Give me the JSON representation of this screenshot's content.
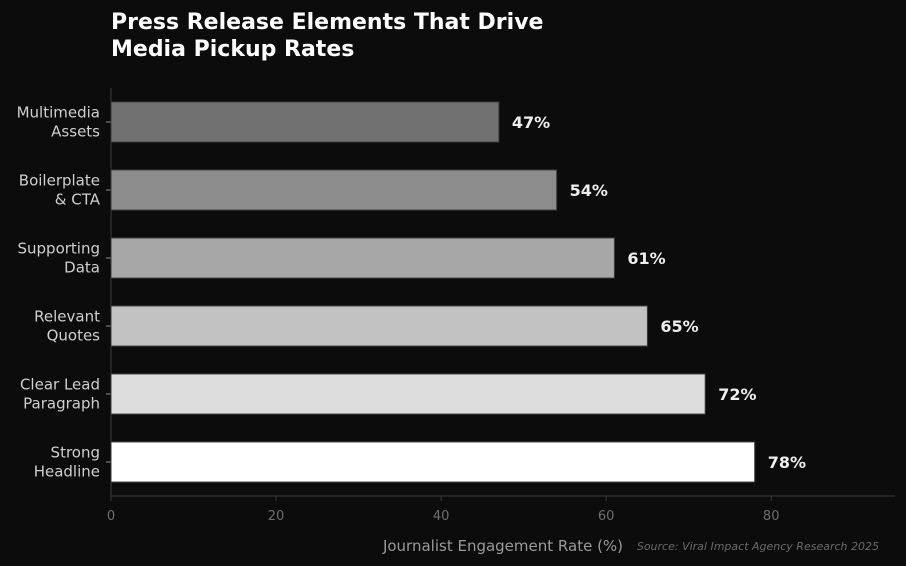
{
  "chart_data": {
    "type": "bar",
    "orientation": "horizontal",
    "title_lines": [
      "Press Release Elements That Drive",
      "Media Pickup Rates"
    ],
    "categories": [
      [
        "Multimedia",
        "Assets"
      ],
      [
        "Boilerplate",
        "& CTA"
      ],
      [
        "Supporting",
        "Data"
      ],
      [
        "Relevant",
        "Quotes"
      ],
      [
        "Clear Lead",
        "Paragraph"
      ],
      [
        "Strong",
        "Headline"
      ]
    ],
    "values": [
      47,
      54,
      61,
      65,
      72,
      78
    ],
    "value_labels": [
      "47%",
      "54%",
      "61%",
      "65%",
      "72%",
      "78%"
    ],
    "bar_colors": [
      "#717171",
      "#8c8c8c",
      "#a7a7a7",
      "#c2c2c2",
      "#dddddd",
      "#ffffff"
    ],
    "xlabel": "Journalist Engagement Rate (%)",
    "xticks": [
      0,
      20,
      40,
      60,
      80
    ],
    "xlim": [
      0,
      95
    ],
    "grid": false,
    "source": "Source: Viral Impact Agency Research 2025",
    "colors": {
      "background": "#0c0c0c",
      "title": "#ffffff",
      "category_label": "#cfcfcf",
      "value_label": "#eeeeee",
      "axis": "#3a3a3a",
      "tick_label": "#6e6e6e",
      "xlabel": "#9a9a9a",
      "source": "#6a6a6a"
    }
  }
}
